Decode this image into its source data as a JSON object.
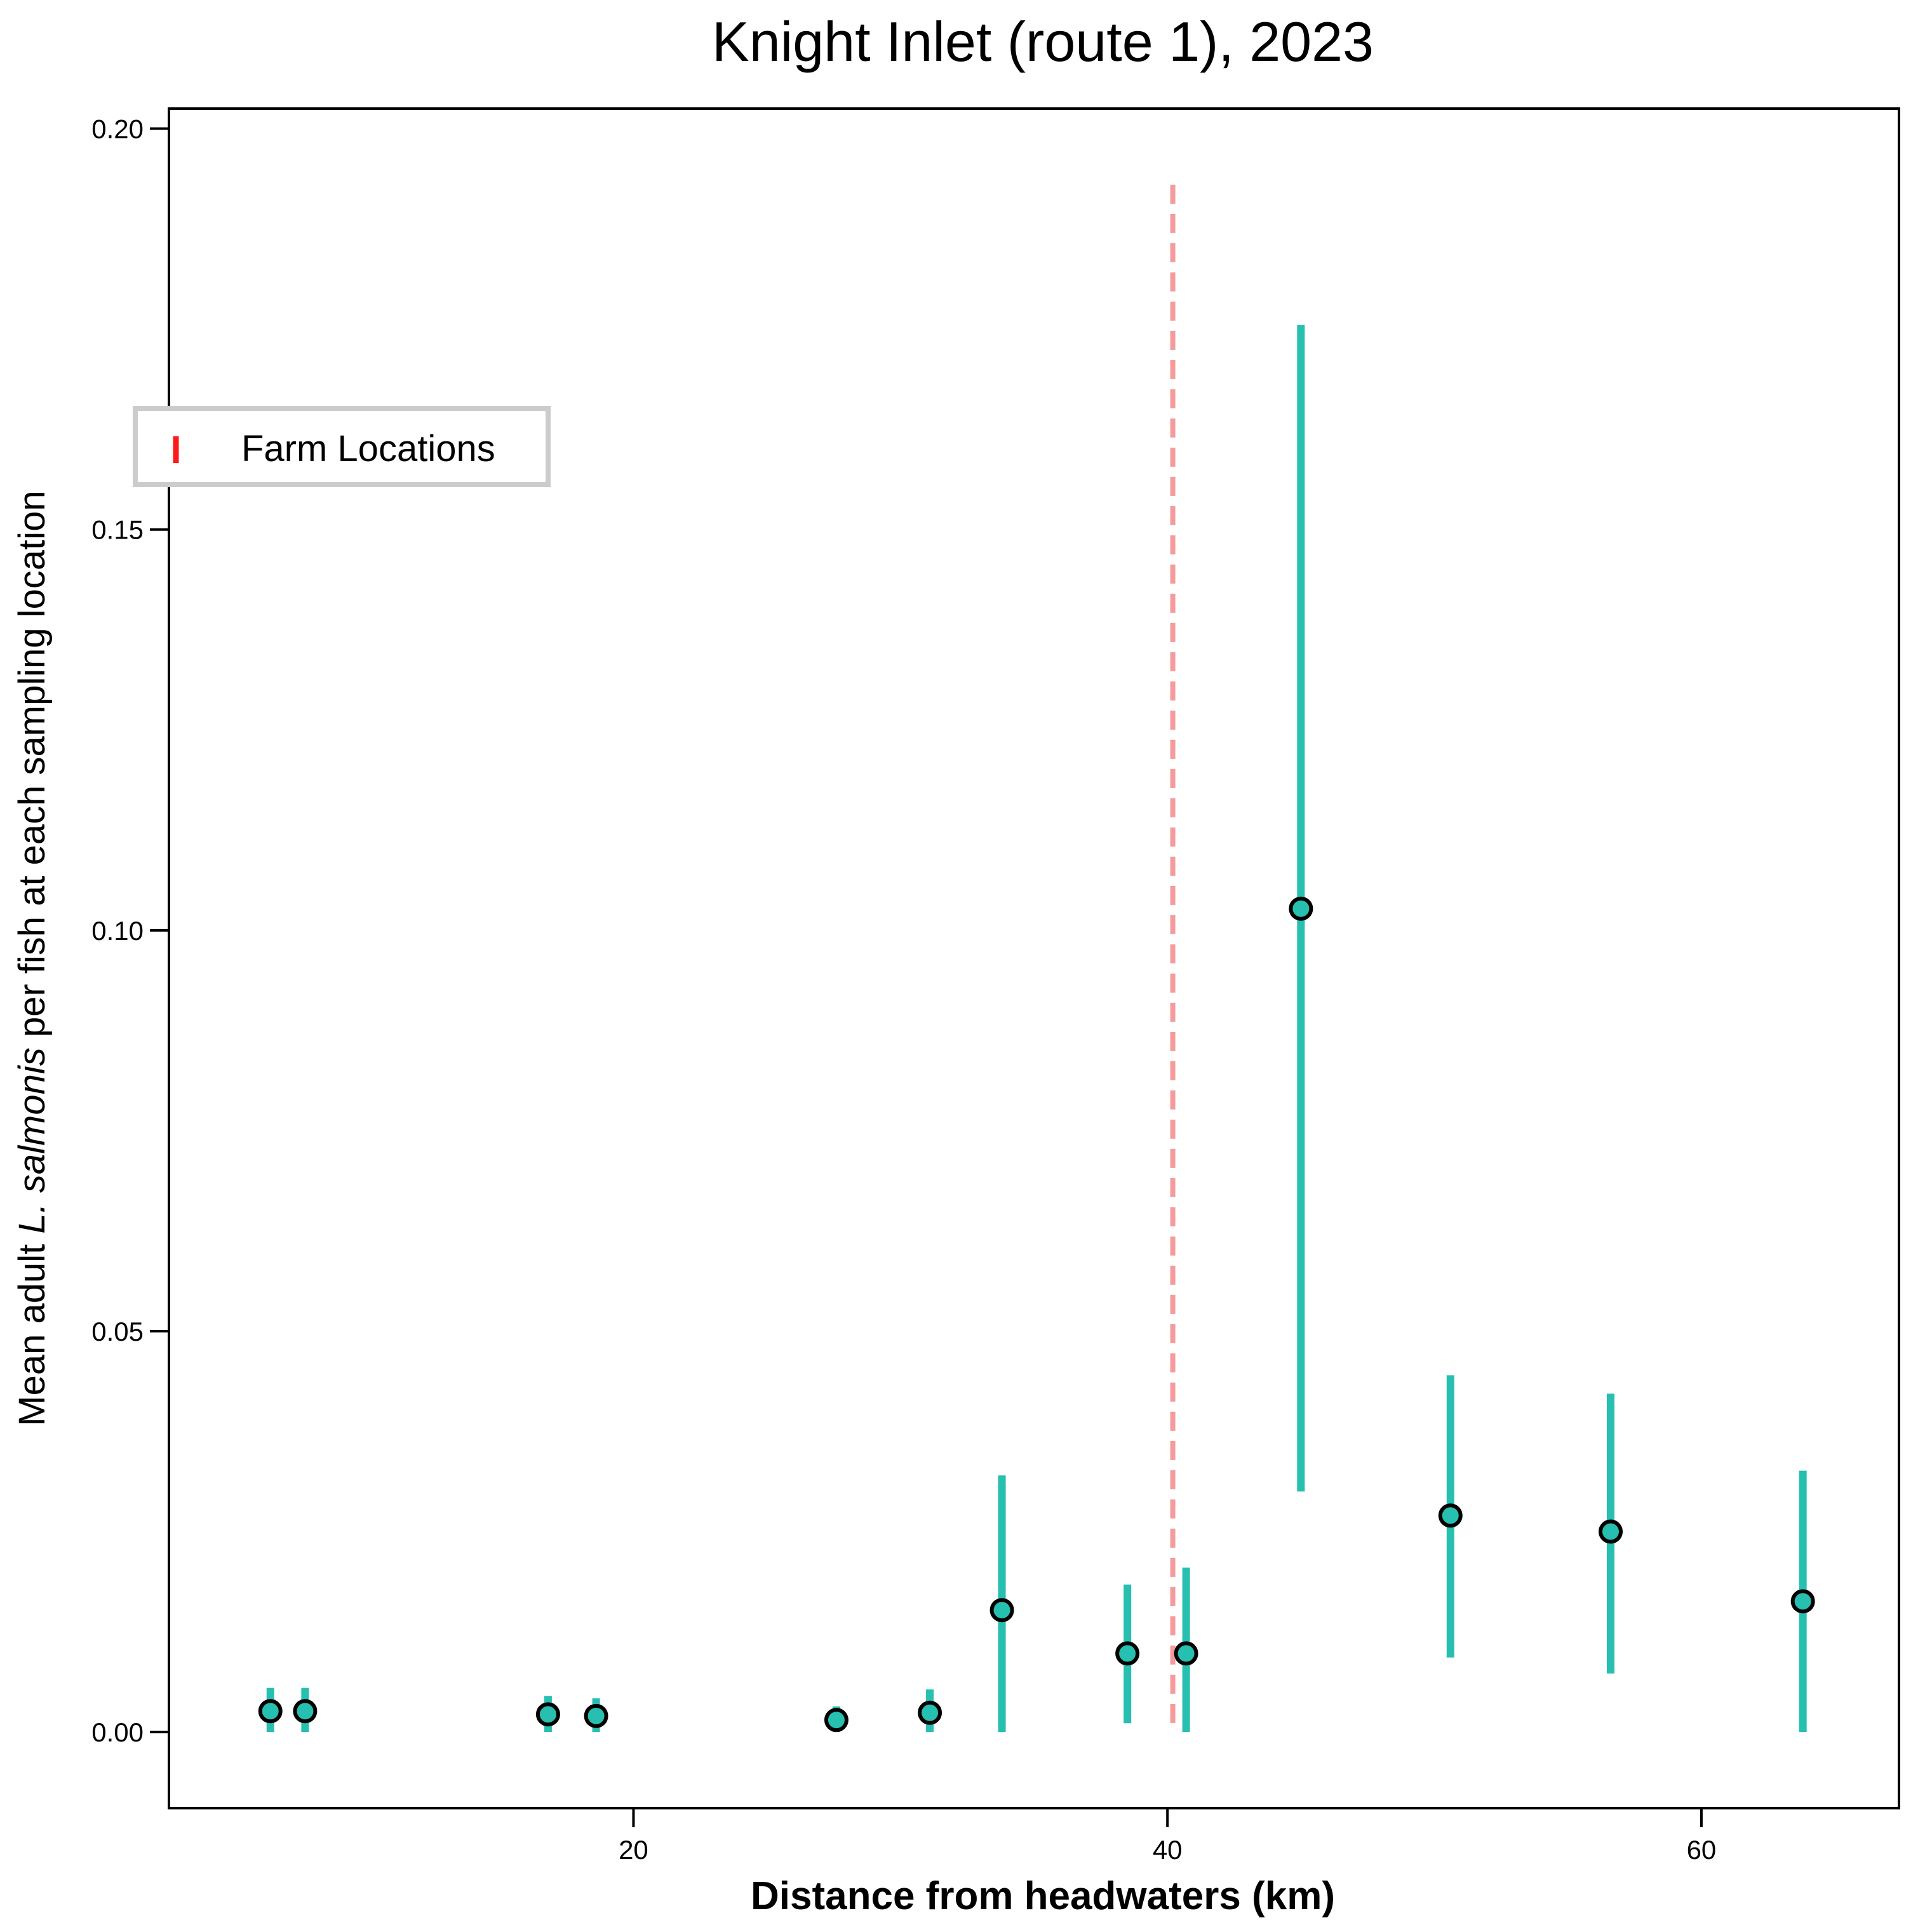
{
  "chart_data": {
    "type": "scatter",
    "title": "Knight Inlet (route 1), 2023",
    "xlabel": "Distance from headwaters (km)",
    "ylabel_parts": {
      "before": "Mean adult ",
      "species": "L. salmonis",
      "after": " per fish at each sampling location"
    },
    "xlim": [
      2.6,
      67.4
    ],
    "ylim": [
      -0.0095,
      0.2025
    ],
    "xticks": [
      20,
      40,
      60
    ],
    "xtick_labels": [
      "20",
      "40",
      "60"
    ],
    "yticks": [
      0.0,
      0.05,
      0.1,
      0.15,
      0.2
    ],
    "ytick_labels": [
      "0.00",
      "0.05",
      "0.10",
      "0.15",
      "0.20"
    ],
    "legend": {
      "placement": "upper-left",
      "entries": [
        {
          "label": "Farm Locations",
          "color": "#ff1a1a"
        }
      ]
    },
    "farm_locations": [
      40.2
    ],
    "colors": {
      "points": "#26bfb0",
      "errorbars": "#26bfb0",
      "point_edge": "#000000",
      "farm_line": "#f59b9b"
    },
    "series": [
      {
        "points": [
          {
            "x": 6.4,
            "y": 0.0026,
            "ylow": 0.0,
            "yhigh": 0.0055
          },
          {
            "x": 7.7,
            "y": 0.0026,
            "ylow": 0.0,
            "yhigh": 0.0055
          },
          {
            "x": 16.8,
            "y": 0.0022,
            "ylow": 0.0,
            "yhigh": 0.0045
          },
          {
            "x": 18.6,
            "y": 0.002,
            "ylow": 0.0,
            "yhigh": 0.0042
          },
          {
            "x": 27.6,
            "y": 0.0015,
            "ylow": 0.0,
            "yhigh": 0.0032
          },
          {
            "x": 31.1,
            "y": 0.0024,
            "ylow": 0.0,
            "yhigh": 0.0053
          },
          {
            "x": 33.8,
            "y": 0.0152,
            "ylow": 0.0,
            "yhigh": 0.032
          },
          {
            "x": 38.5,
            "y": 0.0098,
            "ylow": 0.0011,
            "yhigh": 0.0184
          },
          {
            "x": 40.7,
            "y": 0.0098,
            "ylow": 0.0,
            "yhigh": 0.0205
          },
          {
            "x": 45.0,
            "y": 0.1027,
            "ylow": 0.03,
            "yhigh": 0.1755
          },
          {
            "x": 50.6,
            "y": 0.027,
            "ylow": 0.0093,
            "yhigh": 0.0445
          },
          {
            "x": 56.6,
            "y": 0.025,
            "ylow": 0.0073,
            "yhigh": 0.0422
          },
          {
            "x": 63.8,
            "y": 0.0163,
            "ylow": 0.0,
            "yhigh": 0.0326
          }
        ]
      }
    ]
  }
}
